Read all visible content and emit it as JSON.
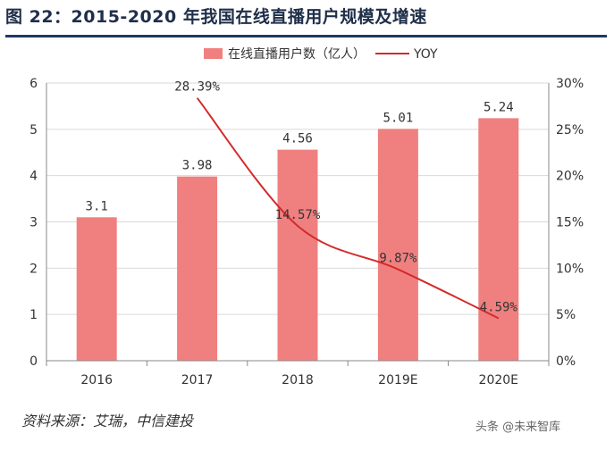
{
  "header": {
    "title": "图 22：2015-2020 年我国在线直播用户规模及增速"
  },
  "footer": {
    "source": "资料来源：艾瑞，中信建投",
    "watermark": "头条 @未来智库"
  },
  "colors": {
    "bar": "#f08080",
    "line": "#d42a2a",
    "title_rule": "#1f3864",
    "grid": "#d9d9d9"
  },
  "chart_data": {
    "type": "bar",
    "categories": [
      "2016",
      "2017",
      "2018",
      "2019E",
      "2020E"
    ],
    "series": [
      {
        "name": "在线直播用户数（亿人）",
        "type": "bar",
        "axis": "left",
        "values": [
          3.1,
          3.98,
          4.56,
          5.01,
          5.24
        ],
        "labels": [
          "3.1",
          "3.98",
          "4.56",
          "5.01",
          "5.24"
        ]
      },
      {
        "name": "YOY",
        "type": "line",
        "axis": "right",
        "values": [
          null,
          28.39,
          14.57,
          9.87,
          4.59
        ],
        "labels": [
          "",
          "28.39%",
          "14.57%",
          "9.87%",
          "4.59%"
        ]
      }
    ],
    "y_left": {
      "min": 0,
      "max": 6,
      "ticks": [
        "0",
        "1",
        "2",
        "3",
        "4",
        "5",
        "6"
      ]
    },
    "y_right": {
      "min": 0,
      "max": 30,
      "ticks": [
        "0%",
        "5%",
        "10%",
        "15%",
        "20%",
        "25%",
        "30%"
      ]
    },
    "legend": "top",
    "grid": true
  }
}
